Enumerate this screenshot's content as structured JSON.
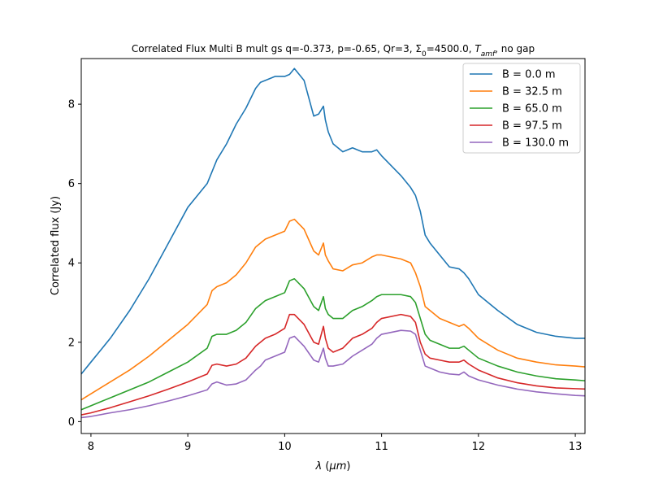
{
  "chart_data": {
    "type": "line",
    "title": "Correlated Flux Multi B mult gs q=-0.373, p=-0.65, Qr=3, Σ₀=4500.0, T_amf, no gap",
    "title_parts": {
      "prefix": "Correlated Flux Multi B mult gs q=-0.373, p=-0.65, Qr=3, Σ",
      "sub0": "0",
      "mid": "=4500.0, ",
      "tvar": "T",
      "tsub": "amf",
      "suffix": ", no gap"
    },
    "xlabel_parts": {
      "sym": "λ",
      "mid": " (",
      "unit": "μm",
      "end": ")"
    },
    "ylabel": "Correlated flux (Jy)",
    "xlim": [
      7.9,
      13.1
    ],
    "ylim": [
      -0.3,
      9.15
    ],
    "xticks": [
      8,
      9,
      10,
      11,
      12,
      13
    ],
    "yticks": [
      0,
      2,
      4,
      6,
      8
    ],
    "legend_position": "top-right",
    "x": [
      7.9,
      8.0,
      8.2,
      8.4,
      8.6,
      8.8,
      9.0,
      9.2,
      9.25,
      9.3,
      9.4,
      9.5,
      9.6,
      9.7,
      9.75,
      9.8,
      9.9,
      10.0,
      10.05,
      10.1,
      10.2,
      10.3,
      10.35,
      10.4,
      10.42,
      10.45,
      10.5,
      10.6,
      10.7,
      10.8,
      10.9,
      10.95,
      11.0,
      11.2,
      11.3,
      11.35,
      11.4,
      11.45,
      11.5,
      11.6,
      11.7,
      11.8,
      11.85,
      11.9,
      12.0,
      12.2,
      12.4,
      12.6,
      12.8,
      13.0,
      13.1
    ],
    "series": [
      {
        "name": "B = 0.0 m",
        "color": "#1f77b4",
        "values": [
          1.2,
          1.5,
          2.1,
          2.8,
          3.6,
          4.5,
          5.4,
          6.0,
          6.3,
          6.6,
          7.0,
          7.5,
          7.9,
          8.4,
          8.55,
          8.6,
          8.7,
          8.7,
          8.75,
          8.9,
          8.6,
          7.7,
          7.75,
          7.95,
          7.6,
          7.3,
          7.0,
          6.8,
          6.9,
          6.8,
          6.8,
          6.85,
          6.7,
          6.2,
          5.9,
          5.7,
          5.3,
          4.7,
          4.5,
          4.2,
          3.9,
          3.85,
          3.75,
          3.6,
          3.2,
          2.8,
          2.45,
          2.25,
          2.15,
          2.1,
          2.1
        ]
      },
      {
        "name": "B = 32.5 m",
        "color": "#ff7f0e",
        "values": [
          0.55,
          0.7,
          1.0,
          1.3,
          1.65,
          2.05,
          2.45,
          2.95,
          3.3,
          3.4,
          3.5,
          3.7,
          4.0,
          4.4,
          4.5,
          4.6,
          4.7,
          4.8,
          5.05,
          5.1,
          4.85,
          4.3,
          4.2,
          4.5,
          4.2,
          4.05,
          3.85,
          3.8,
          3.95,
          4.0,
          4.15,
          4.2,
          4.2,
          4.1,
          4.0,
          3.75,
          3.4,
          2.9,
          2.8,
          2.6,
          2.5,
          2.4,
          2.45,
          2.35,
          2.1,
          1.8,
          1.6,
          1.5,
          1.43,
          1.4,
          1.38
        ]
      },
      {
        "name": "B = 65.0 m",
        "color": "#2ca02c",
        "values": [
          0.3,
          0.4,
          0.6,
          0.8,
          1.0,
          1.25,
          1.5,
          1.85,
          2.15,
          2.2,
          2.2,
          2.3,
          2.5,
          2.85,
          2.95,
          3.05,
          3.15,
          3.25,
          3.55,
          3.6,
          3.35,
          2.9,
          2.8,
          3.15,
          2.85,
          2.7,
          2.6,
          2.6,
          2.8,
          2.9,
          3.05,
          3.15,
          3.2,
          3.2,
          3.15,
          3.0,
          2.6,
          2.2,
          2.05,
          1.95,
          1.85,
          1.85,
          1.9,
          1.8,
          1.6,
          1.4,
          1.25,
          1.15,
          1.08,
          1.05,
          1.03
        ]
      },
      {
        "name": "B = 97.5 m",
        "color": "#d62728",
        "values": [
          0.17,
          0.22,
          0.35,
          0.5,
          0.65,
          0.82,
          1.0,
          1.2,
          1.42,
          1.45,
          1.4,
          1.45,
          1.6,
          1.9,
          2.0,
          2.1,
          2.2,
          2.35,
          2.7,
          2.7,
          2.45,
          2.0,
          1.95,
          2.4,
          2.1,
          1.85,
          1.75,
          1.85,
          2.1,
          2.2,
          2.35,
          2.5,
          2.6,
          2.7,
          2.65,
          2.5,
          2.0,
          1.7,
          1.6,
          1.55,
          1.5,
          1.5,
          1.55,
          1.45,
          1.3,
          1.1,
          0.98,
          0.9,
          0.85,
          0.83,
          0.82
        ]
      },
      {
        "name": "B = 130.0 m",
        "color": "#9467bd",
        "values": [
          0.1,
          0.13,
          0.22,
          0.3,
          0.4,
          0.52,
          0.65,
          0.8,
          0.95,
          1.0,
          0.92,
          0.95,
          1.05,
          1.3,
          1.4,
          1.55,
          1.65,
          1.75,
          2.1,
          2.15,
          1.9,
          1.55,
          1.5,
          1.85,
          1.6,
          1.4,
          1.4,
          1.45,
          1.65,
          1.8,
          1.95,
          2.1,
          2.2,
          2.3,
          2.28,
          2.2,
          1.8,
          1.4,
          1.35,
          1.25,
          1.2,
          1.18,
          1.25,
          1.15,
          1.05,
          0.92,
          0.82,
          0.75,
          0.7,
          0.66,
          0.65
        ]
      }
    ]
  }
}
